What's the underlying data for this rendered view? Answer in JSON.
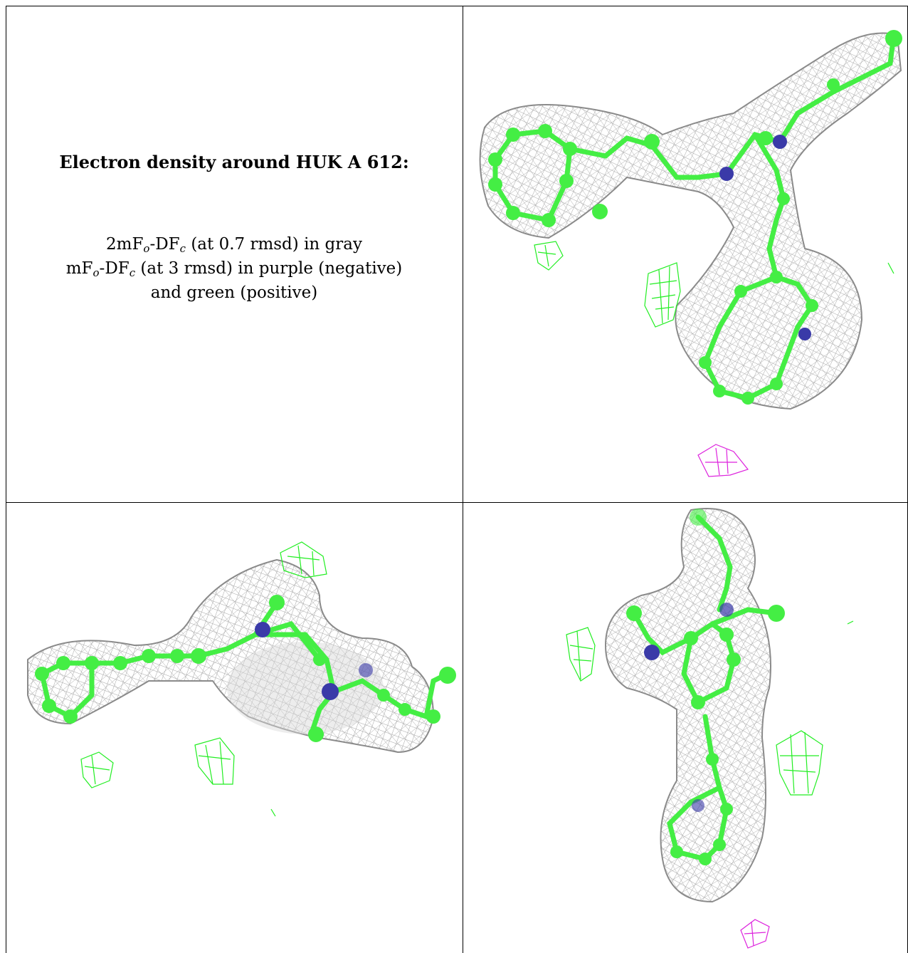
{
  "caption": {
    "title": "Electron density around HUK A 612:",
    "line1": {
      "prefix": "2mF",
      "sub_o": "o",
      "mid": "-DF",
      "sub_c": "c",
      "suffix": " (at 0.7 rmsd) in gray"
    },
    "line2": {
      "prefix": "mF",
      "sub_o": "o",
      "mid": "-DF",
      "sub_c": "c",
      "suffix": " (at 3 rmsd) in purple (negative)"
    },
    "line3": "and green (positive)"
  },
  "colors": {
    "mesh_2fofc": "#9a9a9a",
    "mesh_positive": "#22ee22",
    "mesh_negative": "#dd22dd",
    "carbon": "#44ee44",
    "nitrogen": "#3a3aa8"
  },
  "views": [
    "view-1",
    "view-2",
    "view-3"
  ]
}
